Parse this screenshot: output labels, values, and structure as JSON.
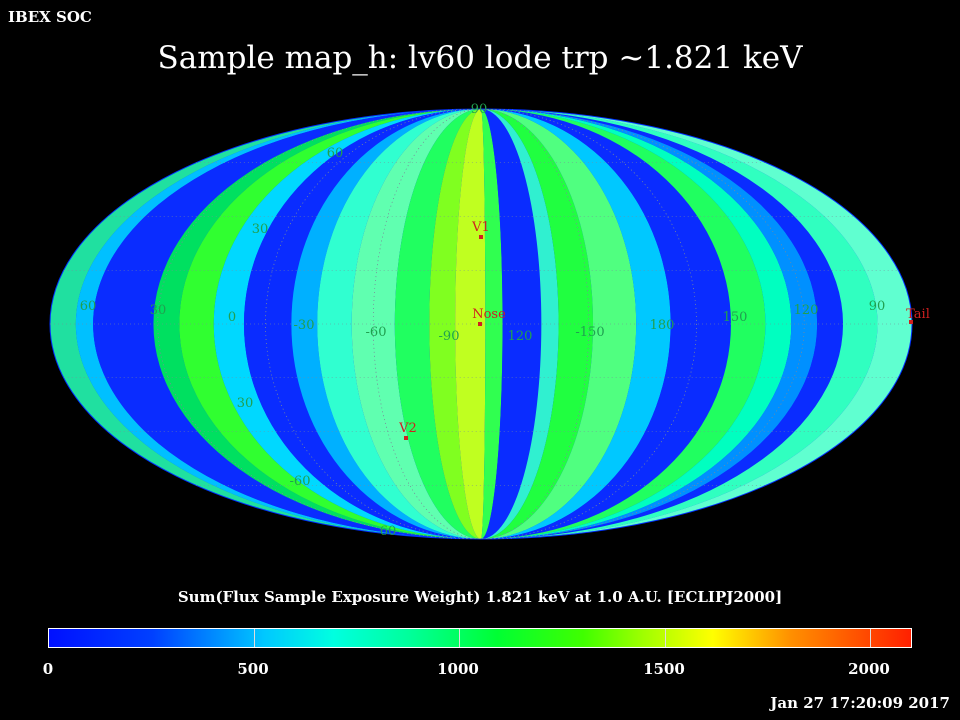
{
  "header": {
    "org": "IBEX SOC",
    "title": "Sample map_h: lv60 lode trp ~1.821 keV"
  },
  "map": {
    "lat_labels": [
      "60",
      "60",
      "30",
      "30",
      "-30",
      "-60",
      "-60",
      "90"
    ],
    "lon_labels": [
      "60",
      "30",
      "0",
      "-30",
      "-60",
      "-90",
      "120",
      "-150",
      "180",
      "150",
      "120",
      "90"
    ],
    "markers": [
      {
        "label": "V1",
        "color": "#d02020"
      },
      {
        "label": "Nose",
        "color": "#d02020"
      },
      {
        "label": "V2",
        "color": "#d02020"
      },
      {
        "label": "Tail",
        "color": "#d02020"
      }
    ],
    "colors": {
      "grid_label": "#20a050",
      "marker": "#d02020"
    }
  },
  "colorbar": {
    "title": "Sum(Flux Sample Exposure Weight)  1.821 keV at 1.0 A.U. [ECLIPJ2000]",
    "ticks": [
      "0",
      "500",
      "1000",
      "1500",
      "2000"
    ],
    "min": 0,
    "max": 2100
  },
  "footer": {
    "timestamp": "Jan 27 17:20:09 2017"
  }
}
